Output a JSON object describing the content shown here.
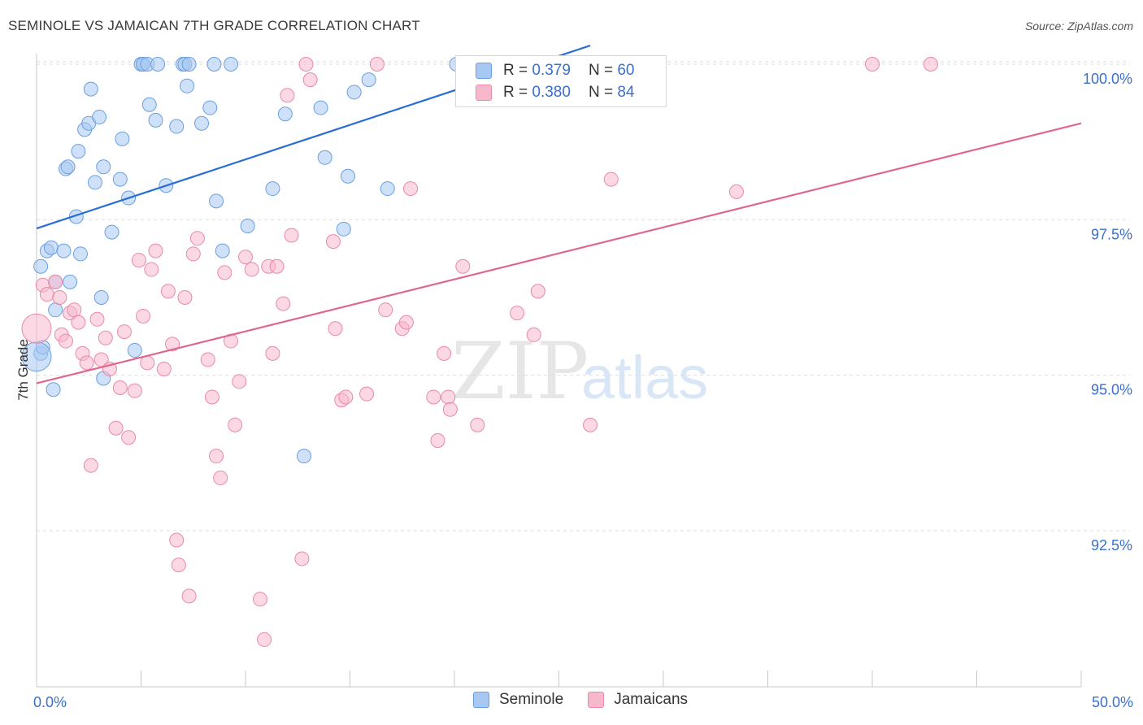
{
  "title": "SEMINOLE VS JAMAICAN 7TH GRADE CORRELATION CHART",
  "source": "Source: ZipAtlas.com",
  "watermark": {
    "zip": "ZIP",
    "atlas": "atlas"
  },
  "legend": {
    "rows": [
      {
        "r_label": "R =",
        "r_value": "0.379",
        "n_label": "N =",
        "n_value": "60",
        "color": "#a7c8f2",
        "stroke": "#6a9fe0"
      },
      {
        "r_label": "R =",
        "r_value": "0.380",
        "n_label": "N =",
        "n_value": "84",
        "color": "#f7b8cc",
        "stroke": "#e88aa8"
      }
    ]
  },
  "bottom_legend": [
    {
      "label": "Seminole",
      "color": "#a7c8f2",
      "stroke": "#6a9fe0"
    },
    {
      "label": "Jamaicans",
      "color": "#f7b8cc",
      "stroke": "#e88aa8"
    }
  ],
  "chart_data": {
    "type": "scatter",
    "title": "SEMINOLE VS JAMAICAN 7TH GRADE CORRELATION CHART",
    "xlabel": "",
    "ylabel": "7th Grade",
    "xlim": [
      0,
      50
    ],
    "ylim": [
      90.0,
      100.3
    ],
    "x_tick_labels": [
      {
        "value": 0,
        "label": "0.0%"
      },
      {
        "value": 50,
        "label": "50.0%"
      }
    ],
    "y_tick_labels": [
      {
        "value": 100,
        "label": "100.0%"
      },
      {
        "value": 97.5,
        "label": "97.5%"
      },
      {
        "value": 95,
        "label": "95.0%"
      },
      {
        "value": 92.5,
        "label": "92.5%"
      }
    ],
    "x_minor_ticks": [
      0,
      5,
      10,
      15,
      20,
      25,
      30,
      35,
      40,
      45,
      50
    ],
    "grid": true,
    "series": [
      {
        "name": "Seminole",
        "color": "#a7c8f2",
        "stroke": "#6a9fe0",
        "line_color": "#2a6dd4",
        "trend": {
          "x0": 0,
          "y0": 97.36,
          "x1": 26.5,
          "y1": 100.3
        },
        "points": [
          [
            0.2,
            95.35
          ],
          [
            0.3,
            95.45
          ],
          [
            0.2,
            96.75
          ],
          [
            0.5,
            97.0
          ],
          [
            0.7,
            97.05
          ],
          [
            0.9,
            96.5
          ],
          [
            0.9,
            96.05
          ],
          [
            0.8,
            94.77
          ],
          [
            1.3,
            97.0
          ],
          [
            1.6,
            96.5
          ],
          [
            1.4,
            98.32
          ],
          [
            1.5,
            98.35
          ],
          [
            1.9,
            97.55
          ],
          [
            2.1,
            96.95
          ],
          [
            2.0,
            98.6
          ],
          [
            2.3,
            98.95
          ],
          [
            2.5,
            99.05
          ],
          [
            2.6,
            99.6
          ],
          [
            2.8,
            98.1
          ],
          [
            3.0,
            99.15
          ],
          [
            3.2,
            98.35
          ],
          [
            3.1,
            96.25
          ],
          [
            3.2,
            94.95
          ],
          [
            3.6,
            97.3
          ],
          [
            4.0,
            98.15
          ],
          [
            4.1,
            98.8
          ],
          [
            4.4,
            97.85
          ],
          [
            4.7,
            95.4
          ],
          [
            5.0,
            100.0
          ],
          [
            5.1,
            100.0
          ],
          [
            5.1,
            100.0
          ],
          [
            5.3,
            100.0
          ],
          [
            5.4,
            99.35
          ],
          [
            5.7,
            99.1
          ],
          [
            5.8,
            100.0
          ],
          [
            6.2,
            98.05
          ],
          [
            6.7,
            99.0
          ],
          [
            7.0,
            100.0
          ],
          [
            7.1,
            100.0
          ],
          [
            7.2,
            99.65
          ],
          [
            7.3,
            100.0
          ],
          [
            7.9,
            99.05
          ],
          [
            8.3,
            99.3
          ],
          [
            8.5,
            100.0
          ],
          [
            8.6,
            97.8
          ],
          [
            8.9,
            97.0
          ],
          [
            9.3,
            100.0
          ],
          [
            10.1,
            97.4
          ],
          [
            11.3,
            98.0
          ],
          [
            11.9,
            99.2
          ],
          [
            12.8,
            93.7
          ],
          [
            13.6,
            99.3
          ],
          [
            13.8,
            98.5
          ],
          [
            14.7,
            97.35
          ],
          [
            14.9,
            98.2
          ],
          [
            15.2,
            99.55
          ],
          [
            15.9,
            99.75
          ],
          [
            16.8,
            98.0
          ],
          [
            20.1,
            100.0
          ],
          [
            0.0,
            95.3
          ]
        ]
      },
      {
        "name": "Jamaicans",
        "color": "#f7b8cc",
        "stroke": "#e88aa8",
        "line_color": "#e0668f",
        "trend": {
          "x0": 0,
          "y0": 94.87,
          "x1": 50,
          "y1": 99.05
        },
        "points": [
          [
            0.3,
            96.45
          ],
          [
            0.5,
            96.3
          ],
          [
            0.9,
            96.5
          ],
          [
            1.1,
            96.25
          ],
          [
            1.2,
            95.65
          ],
          [
            1.4,
            95.55
          ],
          [
            1.6,
            96.0
          ],
          [
            1.8,
            96.05
          ],
          [
            2.0,
            95.85
          ],
          [
            2.2,
            95.35
          ],
          [
            2.4,
            95.2
          ],
          [
            2.6,
            93.55
          ],
          [
            2.9,
            95.9
          ],
          [
            3.1,
            95.25
          ],
          [
            3.3,
            95.6
          ],
          [
            3.5,
            95.1
          ],
          [
            3.8,
            94.15
          ],
          [
            4.0,
            94.8
          ],
          [
            4.2,
            95.7
          ],
          [
            4.4,
            94.0
          ],
          [
            4.7,
            94.75
          ],
          [
            4.9,
            96.85
          ],
          [
            5.1,
            95.95
          ],
          [
            5.3,
            95.2
          ],
          [
            5.5,
            96.7
          ],
          [
            5.7,
            97.0
          ],
          [
            6.1,
            95.1
          ],
          [
            6.3,
            96.35
          ],
          [
            6.5,
            95.5
          ],
          [
            6.7,
            92.35
          ],
          [
            6.8,
            91.95
          ],
          [
            7.1,
            96.25
          ],
          [
            7.3,
            91.45
          ],
          [
            7.5,
            96.95
          ],
          [
            7.7,
            97.2
          ],
          [
            8.2,
            95.25
          ],
          [
            8.4,
            94.65
          ],
          [
            8.6,
            93.7
          ],
          [
            8.8,
            93.35
          ],
          [
            9.0,
            96.65
          ],
          [
            9.3,
            95.55
          ],
          [
            9.5,
            94.2
          ],
          [
            9.7,
            94.9
          ],
          [
            10.0,
            96.9
          ],
          [
            10.3,
            96.7
          ],
          [
            10.7,
            91.4
          ],
          [
            10.9,
            90.75
          ],
          [
            11.1,
            96.75
          ],
          [
            11.3,
            95.35
          ],
          [
            11.5,
            96.75
          ],
          [
            11.8,
            96.15
          ],
          [
            12.0,
            99.5
          ],
          [
            12.2,
            97.25
          ],
          [
            12.7,
            92.05
          ],
          [
            12.9,
            100.0
          ],
          [
            13.1,
            99.75
          ],
          [
            14.2,
            97.15
          ],
          [
            14.3,
            95.75
          ],
          [
            14.6,
            94.6
          ],
          [
            14.8,
            94.65
          ],
          [
            15.8,
            94.7
          ],
          [
            16.3,
            100.0
          ],
          [
            16.7,
            96.05
          ],
          [
            17.5,
            95.75
          ],
          [
            17.7,
            95.85
          ],
          [
            17.9,
            98.0
          ],
          [
            19.0,
            94.65
          ],
          [
            19.2,
            93.95
          ],
          [
            19.5,
            95.35
          ],
          [
            19.7,
            94.65
          ],
          [
            19.8,
            94.45
          ],
          [
            20.4,
            96.75
          ],
          [
            20.5,
            100.0
          ],
          [
            21.1,
            94.2
          ],
          [
            23.0,
            96.0
          ],
          [
            23.8,
            95.65
          ],
          [
            24.0,
            96.35
          ],
          [
            26.1,
            100.0
          ],
          [
            26.5,
            94.2
          ],
          [
            27.5,
            98.15
          ],
          [
            33.5,
            97.95
          ],
          [
            40.0,
            100.0
          ],
          [
            42.8,
            100.0
          ],
          [
            0.0,
            95.75
          ]
        ]
      }
    ]
  }
}
